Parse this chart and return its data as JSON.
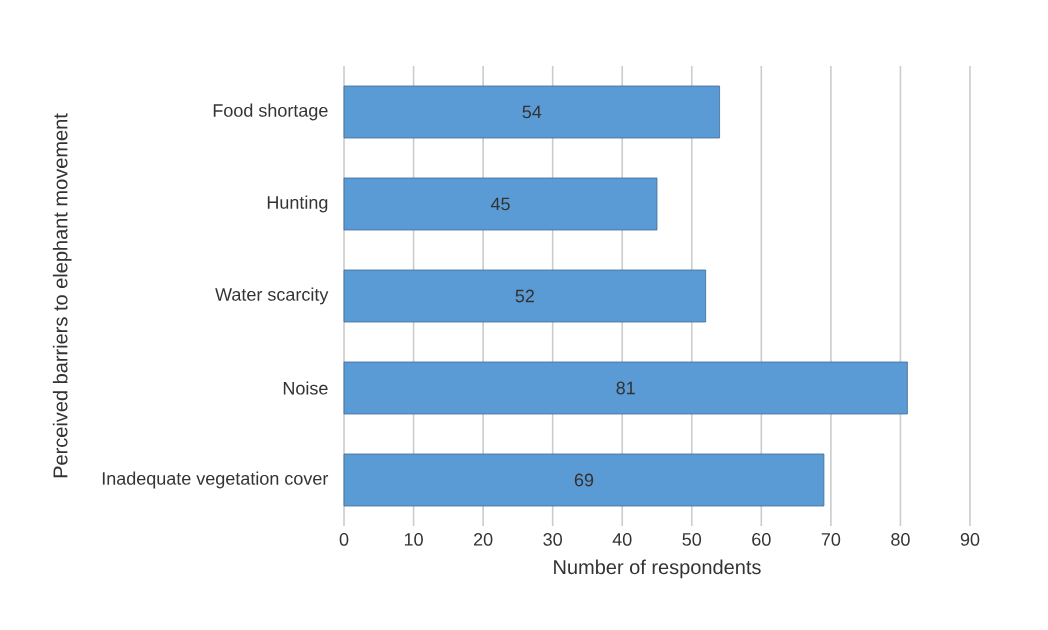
{
  "chart_data": {
    "type": "bar",
    "orientation": "horizontal",
    "xlabel": "Number of respondents",
    "ylabel": "Perceived barriers to elephant movement",
    "categories": [
      "Food shortage",
      "Hunting",
      "Water scarcity",
      "Noise",
      "Inadequate vegetation cover"
    ],
    "values": [
      54,
      45,
      52,
      81,
      69
    ],
    "color": "#5b9bd5",
    "data_labels": true,
    "xlim": [
      0,
      90
    ],
    "xticks": [
      0,
      10,
      20,
      30,
      40,
      50,
      60,
      70,
      80,
      90
    ],
    "grid": "x"
  }
}
